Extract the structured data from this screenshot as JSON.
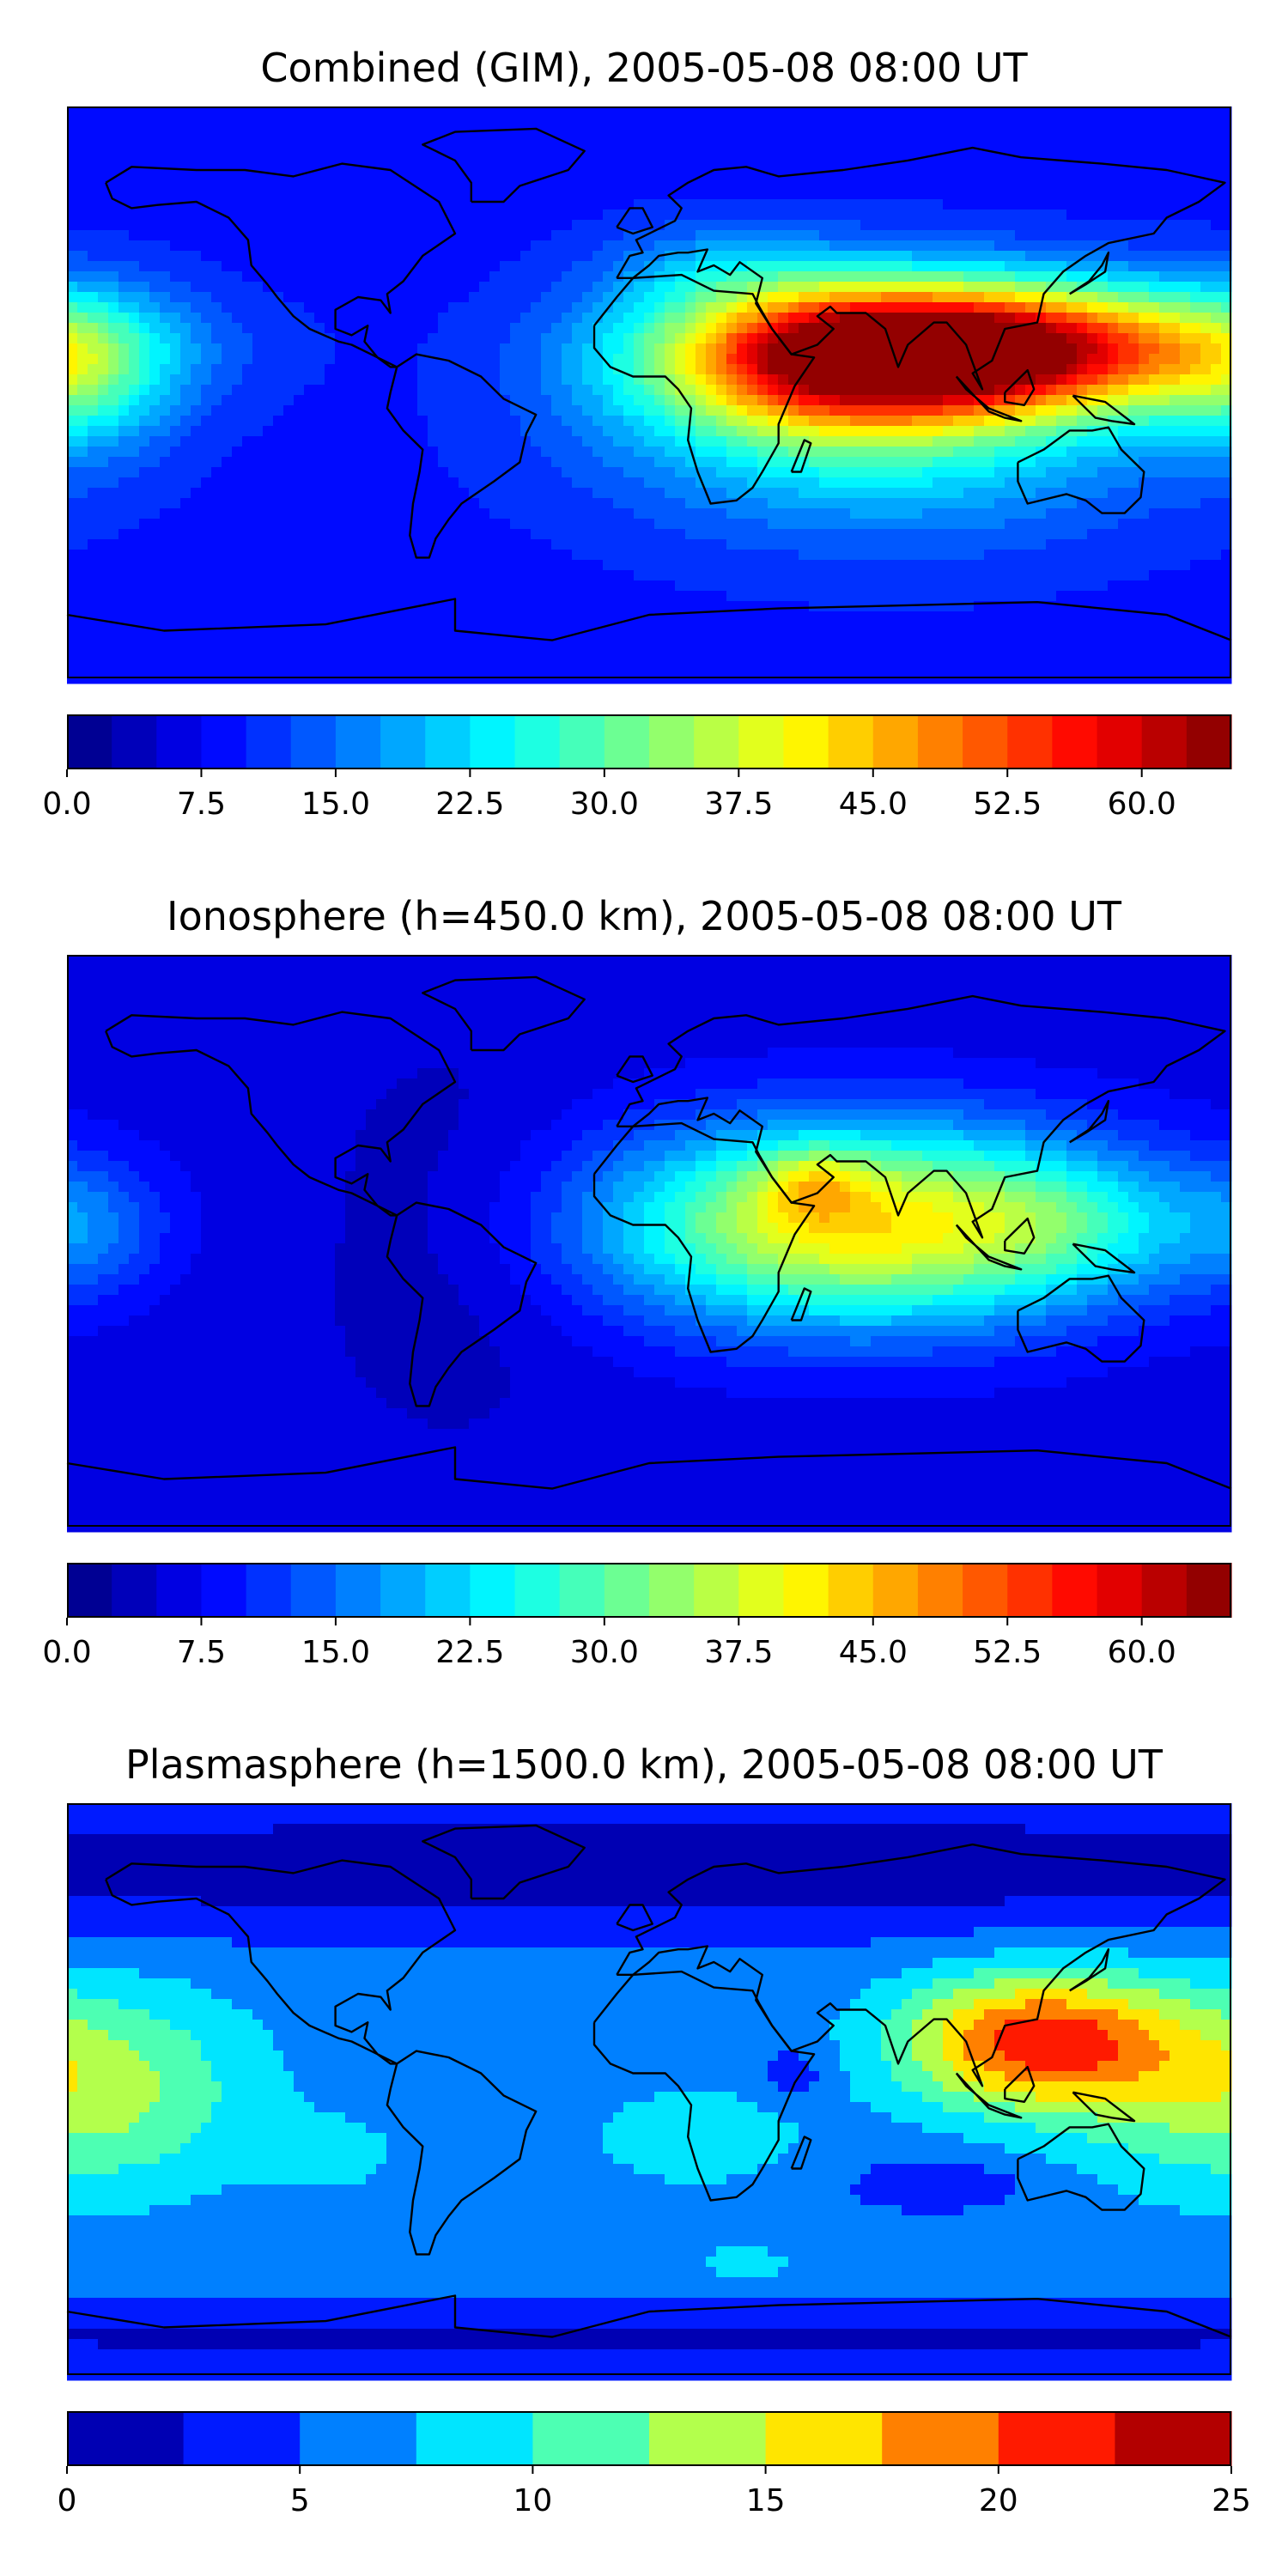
{
  "panels": [
    {
      "title": "Combined (GIM), 2005-05-08 08:00 UT",
      "colorbar": {
        "min": 0.0,
        "max": 65.0,
        "step": 2.5,
        "ticks": [
          "0.0",
          "7.5",
          "15.0",
          "22.5",
          "30.0",
          "37.5",
          "45.0",
          "52.5",
          "60.0"
        ],
        "tick_values": [
          0,
          7.5,
          15,
          22.5,
          30,
          37.5,
          45,
          52.5,
          60
        ]
      },
      "field": {
        "background": 9,
        "blobs": [
          {
            "lon": 105,
            "lat": 14,
            "sx": 55,
            "sy": 14,
            "amp": 50
          },
          {
            "lon": 55,
            "lat": 10,
            "sx": 40,
            "sy": 18,
            "amp": 25
          },
          {
            "lon": 75,
            "lat": -10,
            "sx": 60,
            "sy": 25,
            "amp": 15
          },
          {
            "lon": -175,
            "lat": 5,
            "sx": 20,
            "sy": 18,
            "amp": 12
          },
          {
            "lon": 20,
            "lat": 40,
            "sx": 25,
            "sy": 10,
            "amp": 6
          }
        ]
      }
    },
    {
      "title": "Ionosphere  (h=450.0 km), 2005-05-08 08:00 UT",
      "colorbar": {
        "min": 0.0,
        "max": 65.0,
        "step": 2.5,
        "ticks": [
          "0.0",
          "7.5",
          "15.0",
          "22.5",
          "30.0",
          "37.5",
          "45.0",
          "52.5",
          "60.0"
        ],
        "tick_values": [
          0,
          7.5,
          15,
          22.5,
          30,
          37.5,
          45,
          52.5,
          60
        ]
      },
      "field": {
        "background": 6,
        "blobs": [
          {
            "lon": 65,
            "lat": 5,
            "sx": 55,
            "sy": 22,
            "amp": 36
          },
          {
            "lon": 50,
            "lat": 18,
            "sx": 12,
            "sy": 8,
            "amp": 10
          },
          {
            "lon": 130,
            "lat": 5,
            "sx": 25,
            "sy": 15,
            "amp": 8
          },
          {
            "lon": -175,
            "lat": 5,
            "sx": 18,
            "sy": 15,
            "amp": 8
          },
          {
            "lon": -60,
            "lat": 0,
            "sx": 30,
            "sy": 40,
            "amp": -3
          }
        ]
      }
    },
    {
      "title": "Plasmasphere (h=1500.0 km), 2005-05-08 08:00 UT",
      "colorbar": {
        "min": 0,
        "max": 25,
        "step": 2.5,
        "ticks": [
          "0",
          "5",
          "10",
          "15",
          "20",
          "25"
        ],
        "tick_values": [
          0,
          5,
          10,
          15,
          20,
          25
        ]
      },
      "field": {
        "background": 6,
        "blobs": [
          {
            "lon": 120,
            "lat": 15,
            "sx": 30,
            "sy": 15,
            "amp": 15
          },
          {
            "lon": -175,
            "lat": 0,
            "sx": 35,
            "sy": 22,
            "amp": 8
          },
          {
            "lon": 15,
            "lat": -15,
            "sx": 25,
            "sy": 12,
            "amp": 3
          },
          {
            "lon": -100,
            "lat": -20,
            "sx": 15,
            "sy": 8,
            "amp": 3
          },
          {
            "lon": 0,
            "lat": 70,
            "sx": 400,
            "sy": 15,
            "amp": -5
          },
          {
            "lon": 0,
            "lat": -78,
            "sx": 400,
            "sy": 8,
            "amp": -4
          },
          {
            "lon": 45,
            "lat": 5,
            "sx": 8,
            "sy": 6,
            "amp": -3
          },
          {
            "lon": 90,
            "lat": -30,
            "sx": 20,
            "sy": 6,
            "amp": -3
          },
          {
            "lon": 30,
            "lat": -55,
            "sx": 12,
            "sy": 4,
            "amp": 3
          }
        ]
      }
    }
  ],
  "colormap": "jet",
  "coastline_color": "#000000"
}
